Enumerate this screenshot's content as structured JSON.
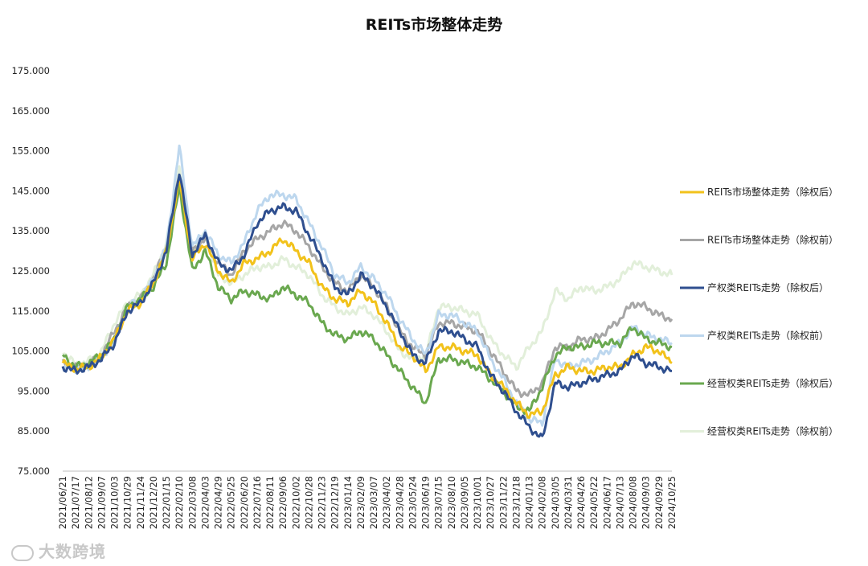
{
  "chart_data": {
    "type": "line",
    "title": "REITs市场整体走势",
    "ylim": [
      75,
      175
    ],
    "yticks": [
      "75.000",
      "85.000",
      "95.000",
      "105.000",
      "115.000",
      "125.000",
      "135.000",
      "145.000",
      "155.000",
      "165.000",
      "175.000"
    ],
    "grid": false,
    "legend_position": "right",
    "x": [
      "2021/06/21",
      "2021/07/17",
      "2021/08/12",
      "2021/09/07",
      "2021/10/03",
      "2021/10/29",
      "2021/11/24",
      "2021/12/20",
      "2022/01/15",
      "2022/02/10",
      "2022/03/08",
      "2022/04/03",
      "2022/04/29",
      "2022/05/25",
      "2022/06/20",
      "2022/07/16",
      "2022/08/11",
      "2022/09/06",
      "2022/10/02",
      "2022/10/28",
      "2022/11/23",
      "2022/12/19",
      "2023/01/14",
      "2023/02/09",
      "2023/03/07",
      "2023/04/02",
      "2023/04/28",
      "2023/05/24",
      "2023/06/19",
      "2023/07/15",
      "2023/08/10",
      "2023/09/05",
      "2023/10/01",
      "2023/10/27",
      "2023/11/22",
      "2023/12/18",
      "2024/01/13",
      "2024/02/08",
      "2024/03/05",
      "2024/03/31",
      "2024/04/26",
      "2024/05/22",
      "2024/06/17",
      "2024/07/13",
      "2024/08/08",
      "2024/09/03",
      "2024/09/29",
      "2024/10/25"
    ],
    "series": [
      {
        "name": "REITs市场整体走势（除权后）",
        "color": "#f2c21b",
        "values": [
          102,
          100.5,
          101,
          103.5,
          108,
          115,
          117,
          122,
          130,
          148,
          128,
          132,
          125,
          122,
          127,
          128,
          130,
          133,
          130,
          127,
          121,
          118,
          117,
          120,
          117,
          112,
          106,
          104,
          100,
          106,
          106,
          105,
          104,
          99,
          96,
          92,
          89,
          90,
          99,
          101,
          100,
          100,
          101,
          101,
          104,
          106,
          105,
          102
        ]
      },
      {
        "name": "REITs市场整体走势（除权前）",
        "color": "#a6a6a6",
        "values": [
          102,
          101,
          101.5,
          104,
          110,
          116,
          118,
          123,
          131,
          149,
          130,
          133,
          127,
          124,
          130,
          133,
          135,
          137,
          135,
          131,
          126,
          122,
          120,
          124,
          121,
          116,
          110,
          106,
          104,
          112,
          112,
          111,
          110,
          105,
          100,
          95,
          94,
          97,
          106,
          106,
          108,
          108,
          110,
          113,
          117,
          116,
          114,
          113
        ]
      },
      {
        "name": "产权类REITs走势（除权后）",
        "color": "#2f4f8f",
        "values": [
          101,
          100,
          101,
          103,
          107,
          115,
          117,
          122,
          130,
          150,
          129,
          134,
          127,
          125,
          129,
          137,
          140,
          141,
          140,
          134,
          128,
          121,
          119,
          124,
          121,
          116,
          110,
          104,
          102,
          110,
          110,
          108,
          106,
          99,
          95,
          90,
          86,
          83,
          97,
          96,
          97,
          98,
          99,
          100,
          104,
          102,
          101,
          100
        ]
      },
      {
        "name": "产权类REITs走势（除权前）",
        "color": "#bdd7ee",
        "values": [
          101,
          100.5,
          101,
          103.5,
          107.5,
          116,
          118,
          123,
          131,
          156,
          131,
          135,
          129,
          127,
          132,
          140,
          144,
          144,
          143,
          137,
          131,
          124,
          122,
          126,
          123,
          119,
          113,
          108,
          104,
          114,
          114,
          112,
          110,
          103,
          98,
          92,
          88,
          87,
          103,
          101,
          102,
          103,
          105,
          107,
          111,
          109,
          108,
          107
        ]
      },
      {
        "name": "经营权类REITs走势（除权后）",
        "color": "#6aa84f",
        "values": [
          104,
          101,
          102,
          104,
          108,
          116,
          118,
          121,
          127,
          146,
          125,
          130,
          121,
          118,
          120,
          119,
          118,
          121,
          119,
          117,
          112,
          109,
          108,
          110,
          108,
          104,
          100,
          96,
          92,
          103,
          103,
          102,
          101,
          98,
          95,
          91,
          90,
          96,
          104,
          106,
          106,
          107,
          107,
          107,
          111,
          108,
          107,
          106
        ]
      },
      {
        "name": "经营权类REITs走势（除权前）",
        "color": "#e2efda",
        "values": [
          105,
          101.5,
          102.5,
          105,
          112,
          117,
          119,
          124,
          132,
          151,
          130,
          134,
          124,
          122,
          124,
          126,
          126,
          128,
          126,
          124,
          119,
          116,
          114,
          116,
          114,
          110,
          105,
          103,
          104,
          116,
          116,
          115,
          114,
          108,
          104,
          101,
          106,
          110,
          120,
          118,
          121,
          120,
          121,
          123,
          127,
          126,
          125,
          124
        ]
      }
    ]
  },
  "watermark": {
    "text": "大数跨境",
    "icon": "logo-icon"
  }
}
